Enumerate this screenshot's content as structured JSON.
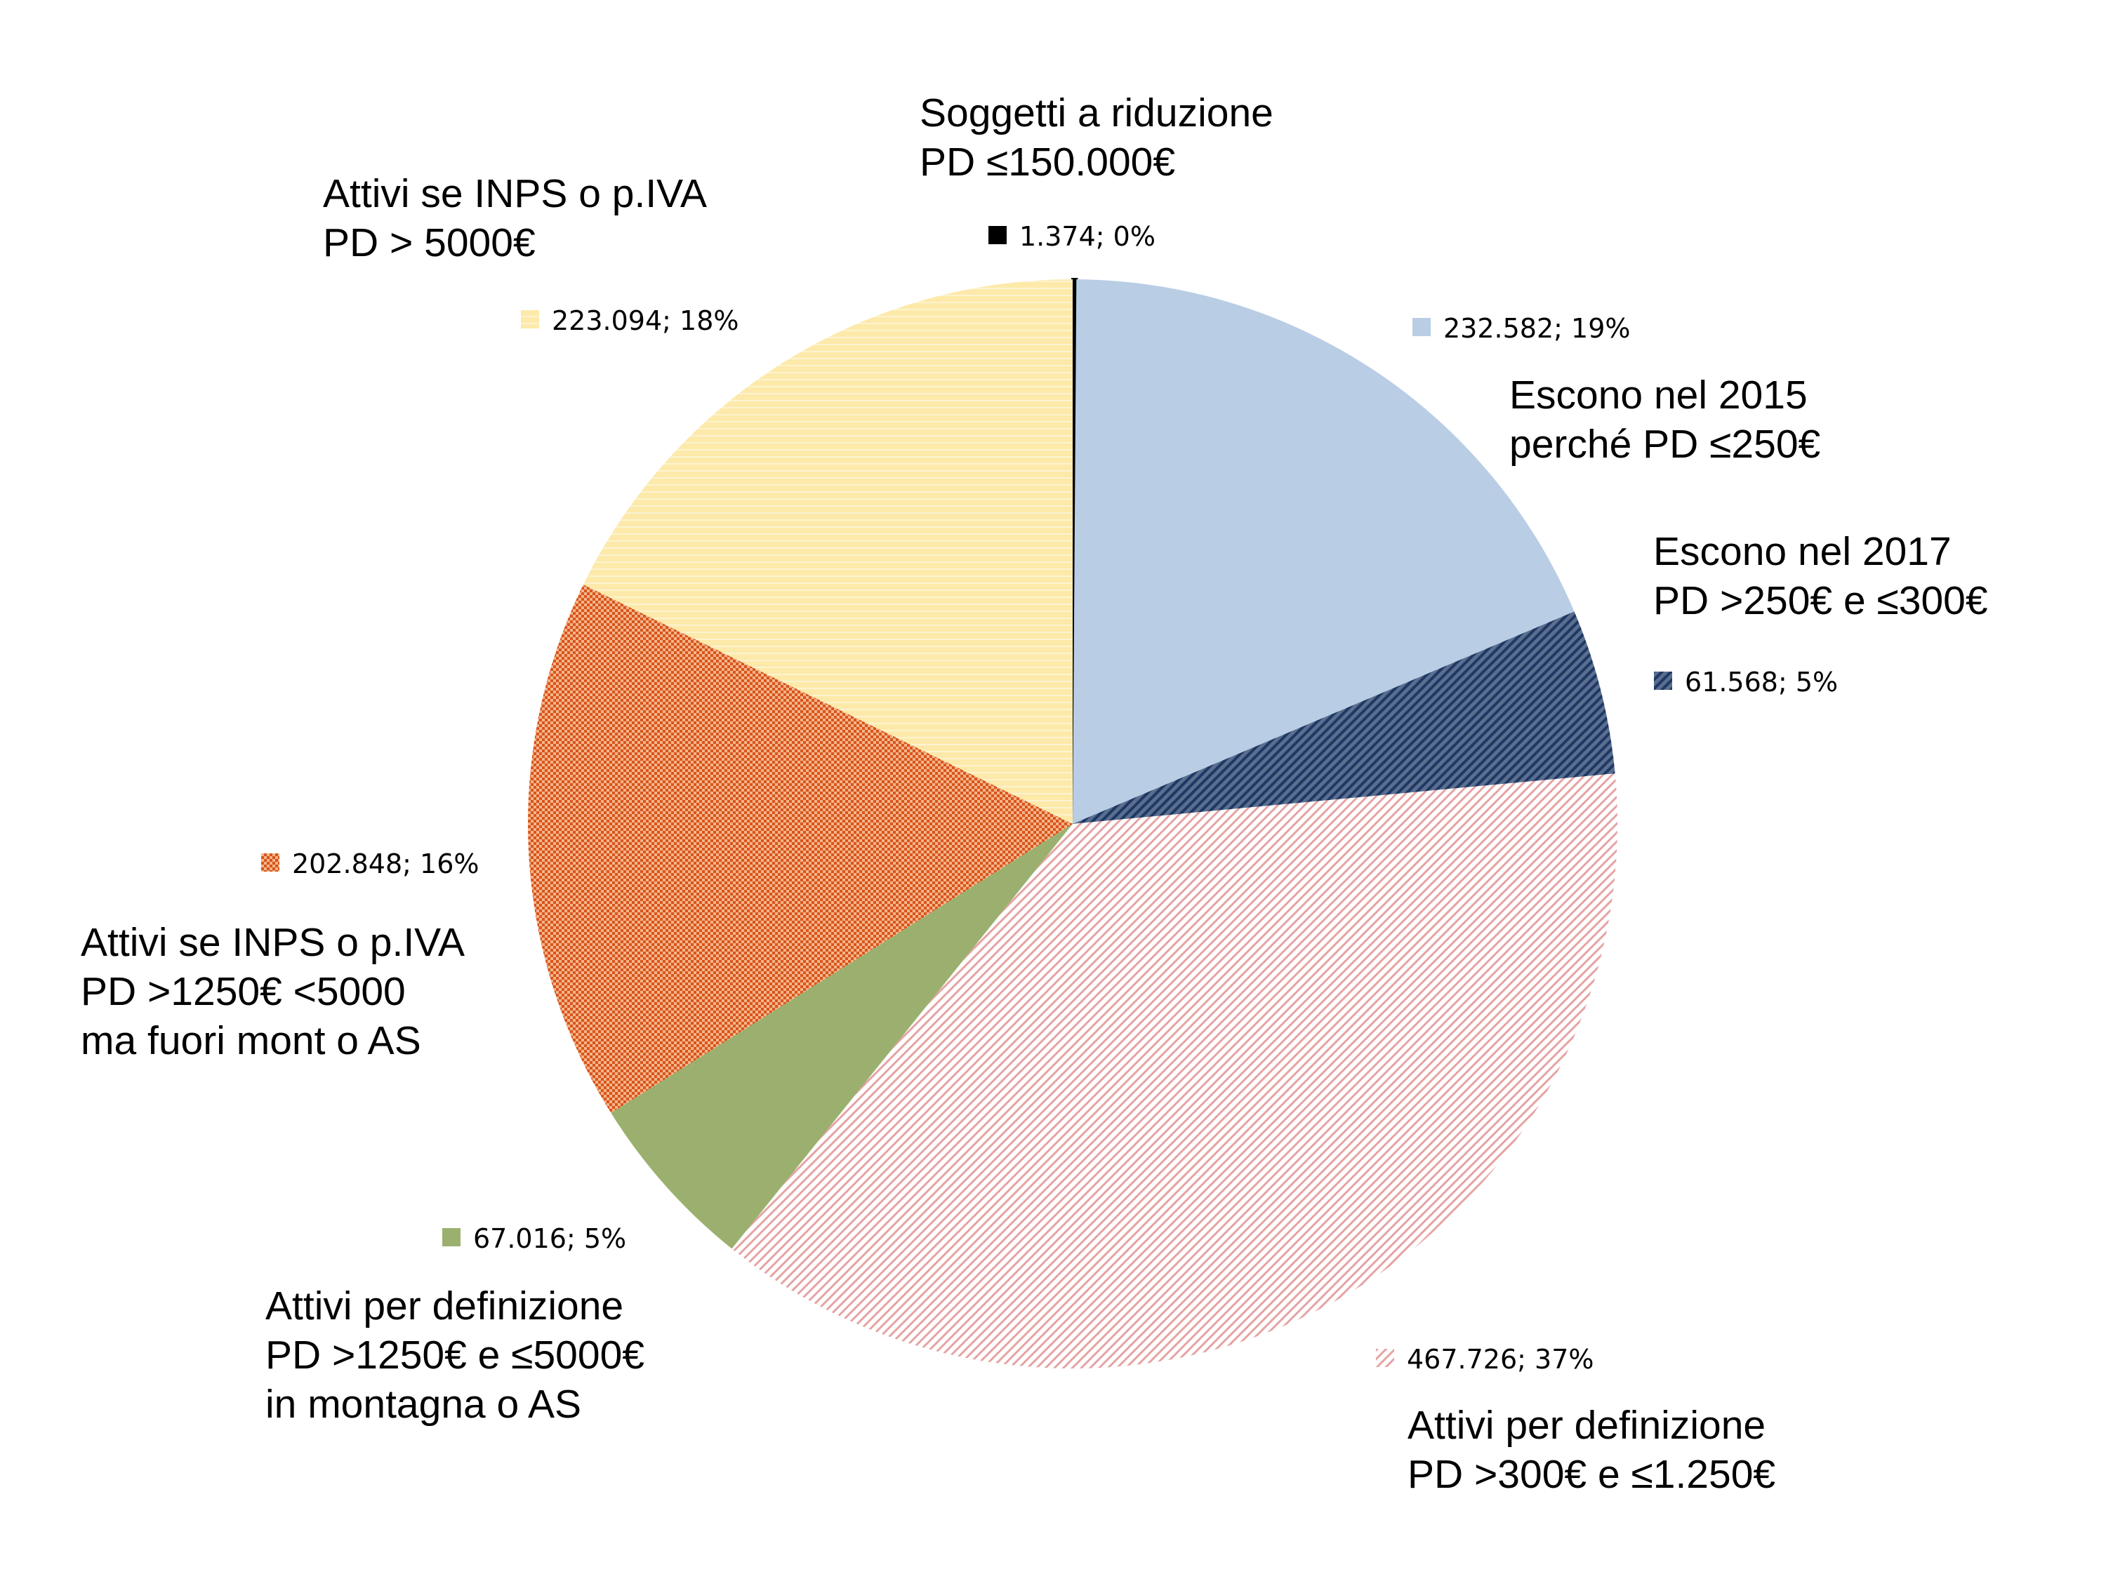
{
  "chart_data": {
    "type": "pie",
    "start_angle_deg": 0,
    "direction": "clockwise",
    "grid": false,
    "legend": "none",
    "slices": [
      {
        "id": "soggetti-a-riduzione",
        "category": [
          "Soggetti a riduzione",
          "PD ≤150.000€"
        ],
        "value": 1374,
        "value_label": "1.374; 0%",
        "percent_label": "0%",
        "color": "#000000",
        "pattern": "solid"
      },
      {
        "id": "escono-2015",
        "category": [
          "Escono nel 2015",
          "perché PD ≤250€"
        ],
        "value": 232582,
        "value_label": "232.582; 19%",
        "percent_label": "19%",
        "color": "#b9cde5",
        "pattern": "solid"
      },
      {
        "id": "escono-2017",
        "category": [
          "Escono nel 2017",
          "PD >250€ e ≤300€"
        ],
        "value": 61568,
        "value_label": "61.568; 5%",
        "percent_label": "5%",
        "color": "#1f3864",
        "pattern": "dark-diagonal"
      },
      {
        "id": "attivi-300-1250",
        "category": [
          "Attivi per definizione",
          "PD >300€ e ≤1.250€"
        ],
        "value": 467726,
        "value_label": "467.726; 37%",
        "percent_label": "37%",
        "color": "#e6a3a3",
        "pattern": "light-diagonal"
      },
      {
        "id": "attivi-montagna",
        "category": [
          "Attivi per definizione",
          "PD >1250€ e ≤5000€",
          "in montagna o AS"
        ],
        "value": 67016,
        "value_label": "67.016; 5%",
        "percent_label": "5%",
        "color": "#9bb06e",
        "pattern": "solid"
      },
      {
        "id": "attivi-fuori-mont",
        "category": [
          "Attivi se INPS o p.IVA",
          "PD >1250€ <5000",
          "ma fuori mont o AS"
        ],
        "value": 202848,
        "value_label": "202.848; 16%",
        "percent_label": "16%",
        "color": "#e0662a",
        "pattern": "dotted"
      },
      {
        "id": "attivi-oltre-5000",
        "category": [
          "Attivi se INPS o p.IVA",
          "PD > 5000€"
        ],
        "value": 223094,
        "value_label": "223.094; 18%",
        "percent_label": "18%",
        "color": "#fde9a9",
        "pattern": "solid-light"
      }
    ]
  }
}
